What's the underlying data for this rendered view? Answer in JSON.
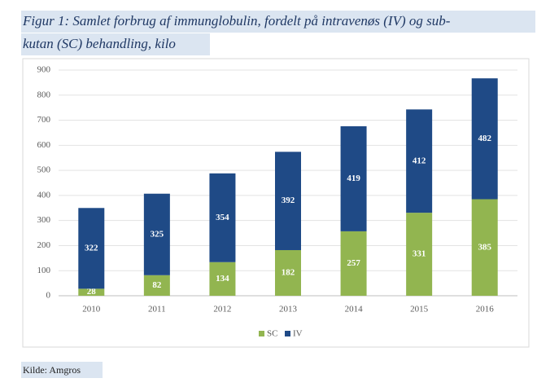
{
  "chart_data": {
    "type": "bar",
    "stacked": true,
    "title_lines": [
      "Figur 1: Samlet forbrug af immunglobulin, fordelt på intravenøs (IV) og sub-",
      "kutan (SC) behandling, kilo"
    ],
    "categories": [
      "2010",
      "2011",
      "2012",
      "2013",
      "2014",
      "2015",
      "2016"
    ],
    "series": [
      {
        "name": "SC",
        "color": "#92b550",
        "values": [
          28,
          82,
          134,
          182,
          257,
          331,
          385
        ]
      },
      {
        "name": "IV",
        "color": "#1f4a86",
        "values": [
          322,
          325,
          354,
          392,
          419,
          412,
          482
        ]
      }
    ],
    "ylim": [
      0,
      900
    ],
    "yticks": [
      0,
      100,
      200,
      300,
      400,
      500,
      600,
      700,
      800,
      900
    ],
    "grid": true,
    "legend": "bottom",
    "source": "Kilde: Amgros"
  }
}
